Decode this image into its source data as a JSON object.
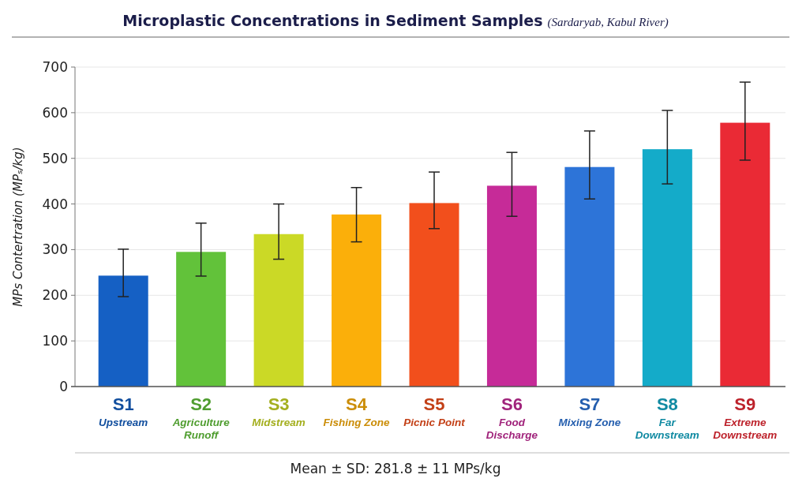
{
  "chart_data": {
    "type": "bar",
    "title": "Microplastic Concentrations in Sediment Samples",
    "subtitle": "(Sardaryab, Kabul River)",
    "ylabel": "MPs Contertration (MPₛ/kg)",
    "categories": [
      "S1\nUpstream",
      "S2\nAgriculture\nRunoff",
      "S3\nMidstream",
      "S4\nFishing Zone",
      "S5\nPicnic Point",
      "S6\nFood\nDischarge",
      "S7\nMixing Zone",
      "S8\nFar\nDownstream",
      "S9\nExtreme\nDownstream"
    ],
    "values": [
      243,
      295,
      334,
      377,
      402,
      440,
      481,
      520,
      578
    ],
    "errors": [
      [
        197,
        301
      ],
      [
        242,
        358
      ],
      [
        279,
        400
      ],
      [
        317,
        436
      ],
      [
        346,
        470
      ],
      [
        373,
        513
      ],
      [
        411,
        560
      ],
      [
        444,
        605
      ],
      [
        496,
        667
      ]
    ],
    "colors": [
      "#1560c4",
      "#62c23a",
      "#cbd926",
      "#fbaf0a",
      "#f24f1c",
      "#c62b98",
      "#2d74d8",
      "#14abc9",
      "#ea2a35"
    ],
    "ylim": [
      0,
      700
    ],
    "yticks": [
      0,
      100,
      200,
      300,
      400,
      500,
      600,
      700
    ],
    "grid": "y",
    "annotations": [
      "Mean ± SD: 281.8 ± 11 MPs/kg"
    ]
  }
}
